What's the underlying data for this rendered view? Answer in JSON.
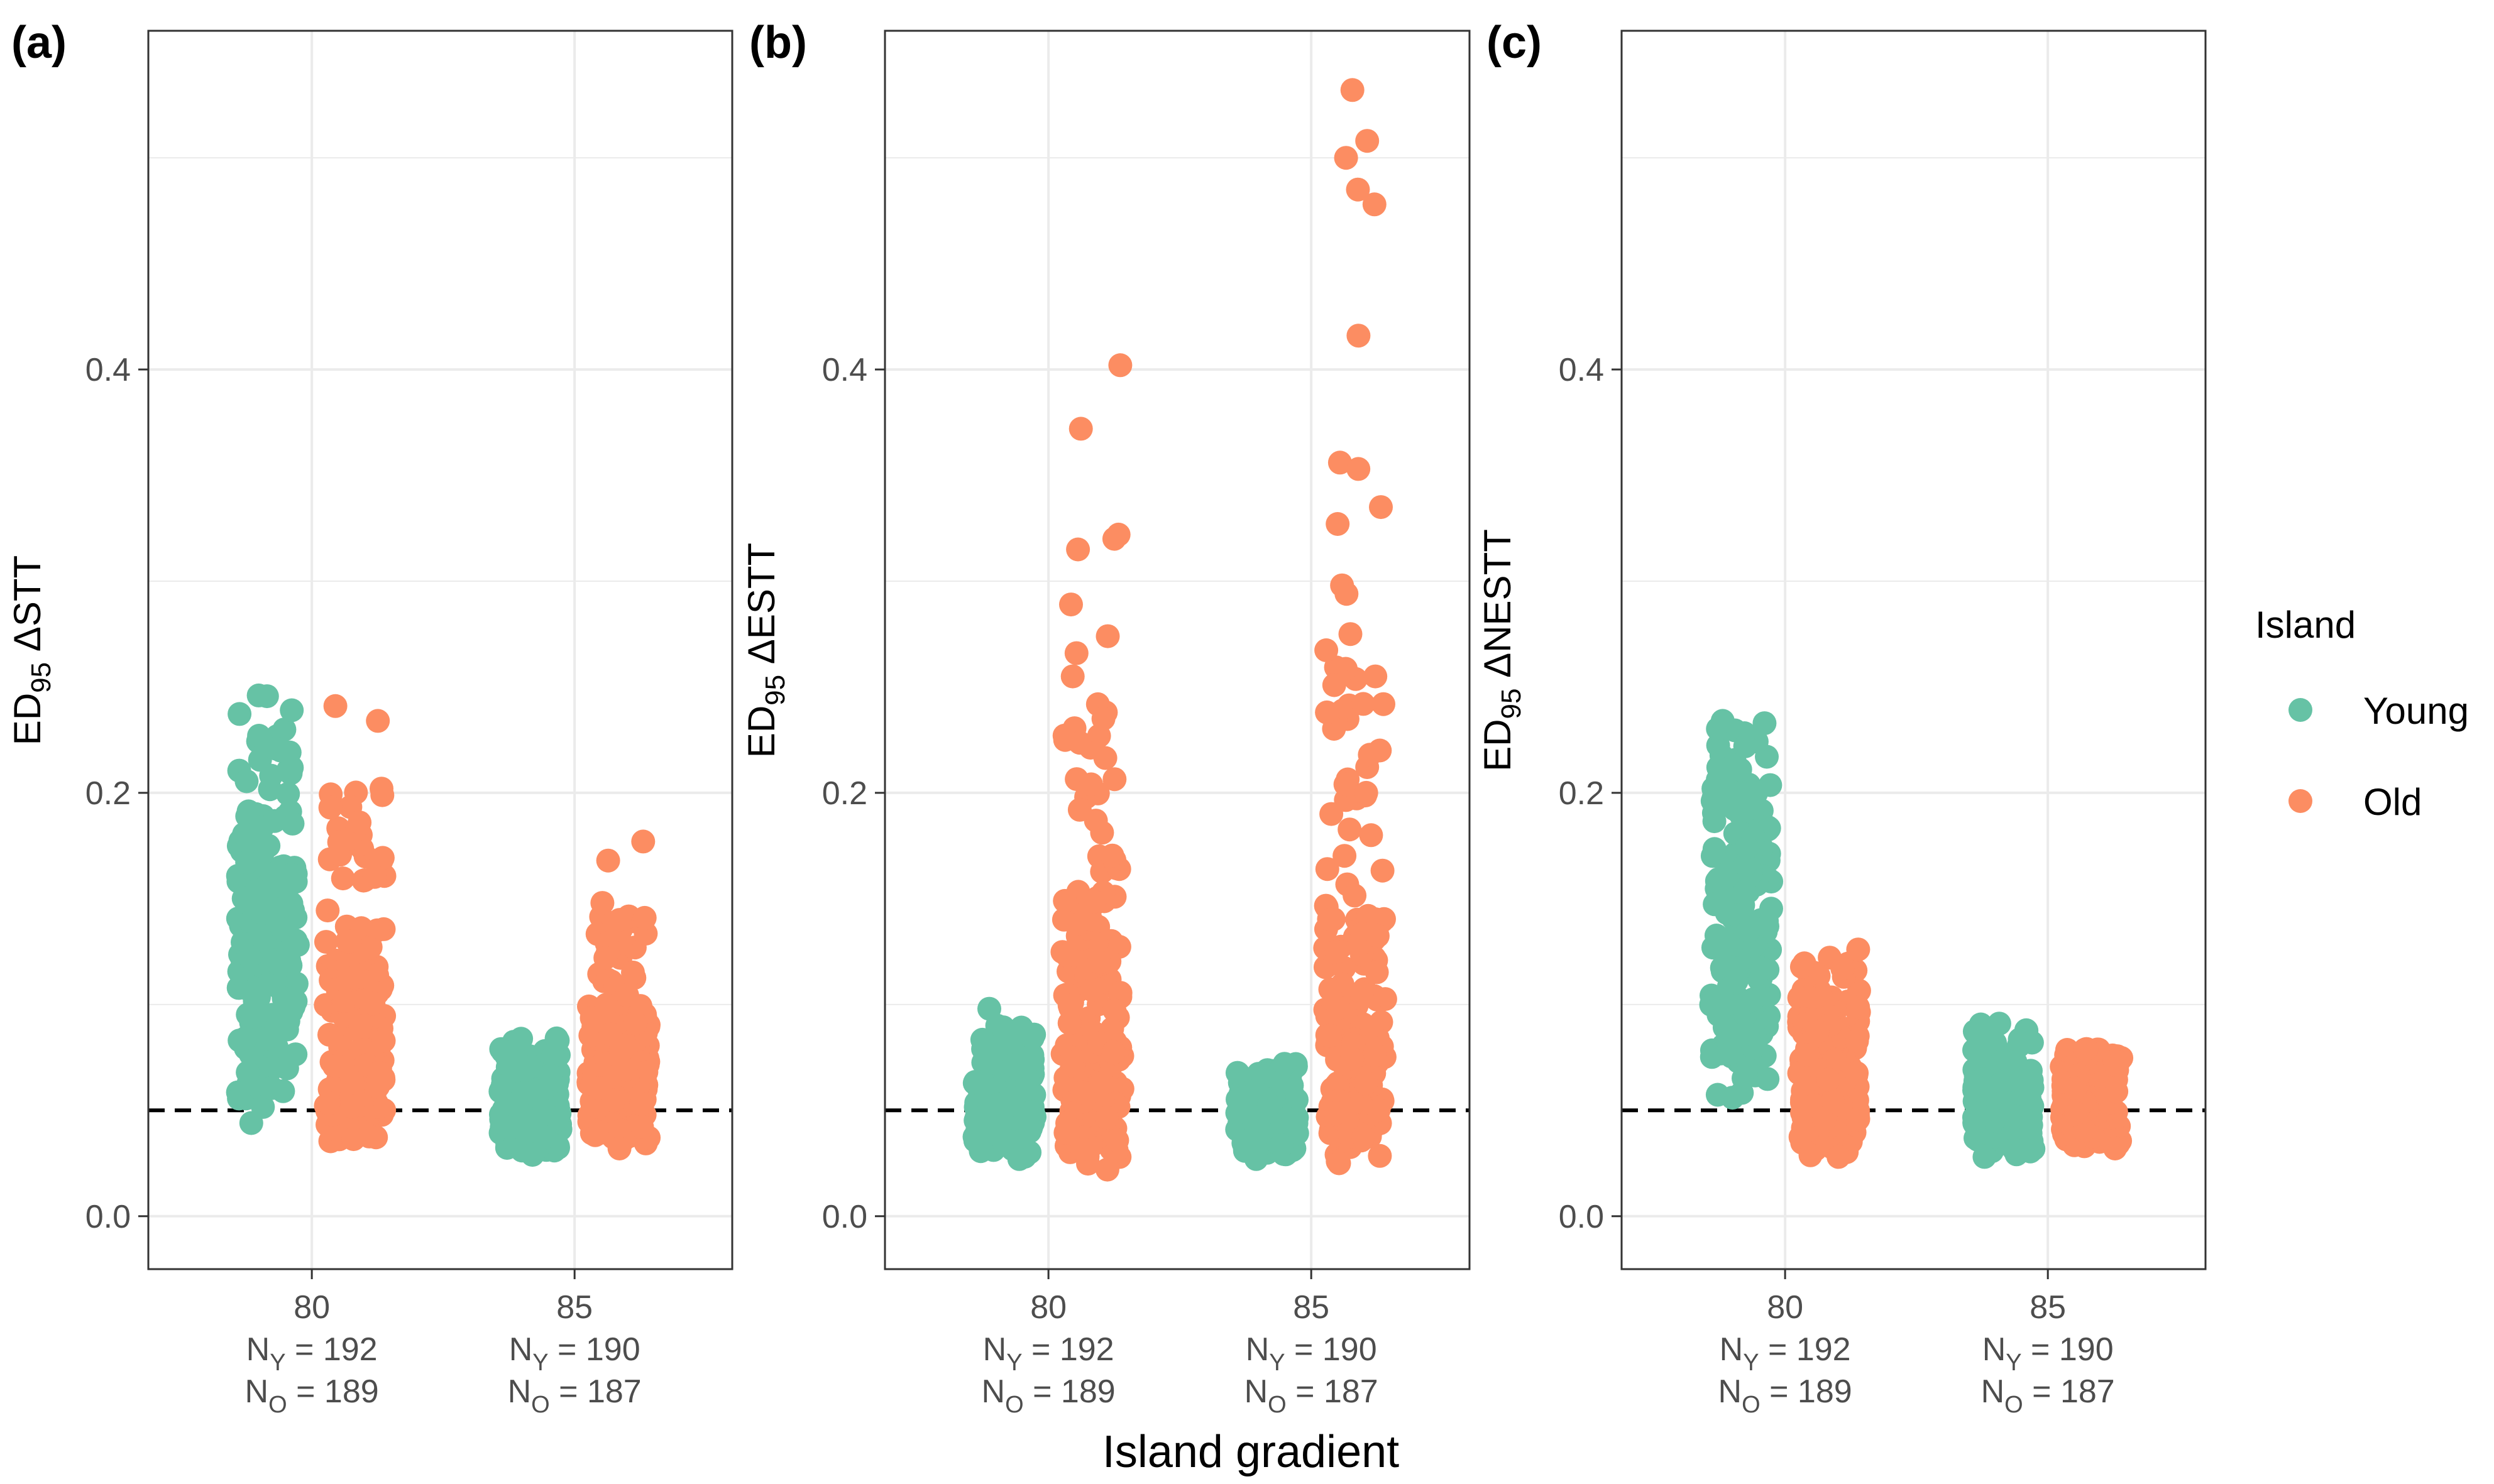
{
  "figure": {
    "x_title": "Island gradient",
    "legend": {
      "title": "Island",
      "items": [
        {
          "label": "Young",
          "color": "#66c2a5"
        },
        {
          "label": "Old",
          "color": "#fc8d62"
        }
      ]
    },
    "reference_line": 0.05
  },
  "chart_data": [
    {
      "type": "scatter",
      "panel_label": "(a)",
      "ylabel": {
        "main": "ED",
        "sub": "95",
        "rest": " ΔSTT"
      },
      "ylim": [
        -0.025,
        0.56
      ],
      "yticks": [
        "0.0",
        "0.2",
        "0.4"
      ],
      "categories": [
        {
          "label": "80",
          "ny_prefix": "N",
          "ny_sub": "Y",
          "ny_value": " = 192",
          "no_prefix": "N",
          "no_sub": "O",
          "no_value": " = 189"
        },
        {
          "label": "85",
          "ny_prefix": "N",
          "ny_sub": "Y",
          "ny_value": " = 190",
          "no_prefix": "N",
          "no_sub": "O",
          "no_value": " = 187"
        }
      ],
      "series": [
        {
          "name": "Young",
          "category": "80",
          "n": 192,
          "min": 0.044,
          "max": 0.246,
          "q1": 0.095,
          "median": 0.125,
          "q3": 0.165,
          "outliers": [
            0.246,
            0.239,
            0.227,
            0.22,
            0.044
          ]
        },
        {
          "name": "Old",
          "category": "80",
          "n": 189,
          "min": 0.033,
          "max": 0.241,
          "q1": 0.055,
          "median": 0.08,
          "q3": 0.115,
          "outliers": [
            0.241,
            0.234,
            0.202,
            0.193,
            0.186
          ]
        },
        {
          "name": "Young",
          "category": "85",
          "n": 190,
          "min": 0.029,
          "max": 0.084,
          "q1": 0.044,
          "median": 0.053,
          "q3": 0.064,
          "outliers": [
            0.029,
            0.084
          ]
        },
        {
          "name": "Old",
          "category": "85",
          "n": 187,
          "min": 0.032,
          "max": 0.177,
          "q1": 0.055,
          "median": 0.07,
          "q3": 0.09,
          "outliers": [
            0.177,
            0.168,
            0.148,
            0.14,
            0.122,
            0.032
          ]
        }
      ]
    },
    {
      "type": "scatter",
      "panel_label": "(b)",
      "ylabel": {
        "main": "ED",
        "sub": "95",
        "rest": " ΔESTT"
      },
      "ylim": [
        -0.025,
        0.56
      ],
      "yticks": [
        "0.0",
        "0.2",
        "0.4"
      ],
      "categories": [
        {
          "label": "80",
          "ny_prefix": "N",
          "ny_sub": "Y",
          "ny_value": " = 192",
          "no_prefix": "N",
          "no_sub": "O",
          "no_value": " = 189"
        },
        {
          "label": "85",
          "ny_prefix": "N",
          "ny_sub": "Y",
          "ny_value": " = 190",
          "no_prefix": "N",
          "no_sub": "O",
          "no_value": " = 187"
        }
      ],
      "series": [
        {
          "name": "Young",
          "category": "80",
          "n": 192,
          "min": 0.027,
          "max": 0.098,
          "q1": 0.043,
          "median": 0.052,
          "q3": 0.062,
          "outliers": [
            0.098,
            0.079,
            0.027
          ]
        },
        {
          "name": "Old",
          "category": "80",
          "n": 189,
          "min": 0.022,
          "max": 0.402,
          "q1": 0.055,
          "median": 0.08,
          "q3": 0.13,
          "outliers": [
            0.402,
            0.372,
            0.322,
            0.32,
            0.315,
            0.289,
            0.274,
            0.266,
            0.255,
            0.238,
            0.235,
            0.225,
            0.204,
            0.192,
            0.022
          ]
        },
        {
          "name": "Young",
          "category": "85",
          "n": 190,
          "min": 0.027,
          "max": 0.072,
          "q1": 0.04,
          "median": 0.047,
          "q3": 0.055,
          "outliers": [
            0.072,
            0.027
          ]
        },
        {
          "name": "Old",
          "category": "85",
          "n": 187,
          "min": 0.025,
          "max": 0.532,
          "q1": 0.055,
          "median": 0.085,
          "q3": 0.14,
          "outliers": [
            0.532,
            0.508,
            0.5,
            0.485,
            0.478,
            0.416,
            0.356,
            0.353,
            0.335,
            0.327,
            0.298,
            0.294,
            0.275,
            0.255,
            0.242,
            0.238,
            0.22,
            0.218,
            0.2,
            0.19,
            0.18,
            0.164,
            0.025
          ]
        }
      ]
    },
    {
      "type": "scatter",
      "panel_label": "(c)",
      "ylabel": {
        "main": "ED",
        "sub": "95",
        "rest": " ΔNESTT"
      },
      "ylim": [
        -0.025,
        0.56
      ],
      "yticks": [
        "0.0",
        "0.2",
        "0.4"
      ],
      "categories": [
        {
          "label": "80",
          "ny_prefix": "N",
          "ny_sub": "Y",
          "ny_value": " = 192",
          "no_prefix": "N",
          "no_sub": "O",
          "no_value": " = 189"
        },
        {
          "label": "85",
          "ny_prefix": "N",
          "ny_sub": "Y",
          "ny_value": " = 190",
          "no_prefix": "N",
          "no_sub": "O",
          "no_value": " = 187"
        }
      ],
      "series": [
        {
          "name": "Young",
          "category": "80",
          "n": 192,
          "min": 0.056,
          "max": 0.234,
          "q1": 0.1,
          "median": 0.13,
          "q3": 0.17,
          "outliers": [
            0.234,
            0.222,
            0.212,
            0.2,
            0.056
          ]
        },
        {
          "name": "Old",
          "category": "80",
          "n": 189,
          "min": 0.028,
          "max": 0.126,
          "q1": 0.05,
          "median": 0.065,
          "q3": 0.085,
          "outliers": [
            0.126,
            0.117,
            0.028
          ]
        },
        {
          "name": "Young",
          "category": "85",
          "n": 190,
          "min": 0.028,
          "max": 0.091,
          "q1": 0.045,
          "median": 0.055,
          "q3": 0.065,
          "outliers": [
            0.091,
            0.082,
            0.028
          ]
        },
        {
          "name": "Old",
          "category": "85",
          "n": 187,
          "min": 0.032,
          "max": 0.079,
          "q1": 0.045,
          "median": 0.055,
          "q3": 0.066,
          "outliers": [
            0.079,
            0.032
          ]
        }
      ]
    }
  ]
}
